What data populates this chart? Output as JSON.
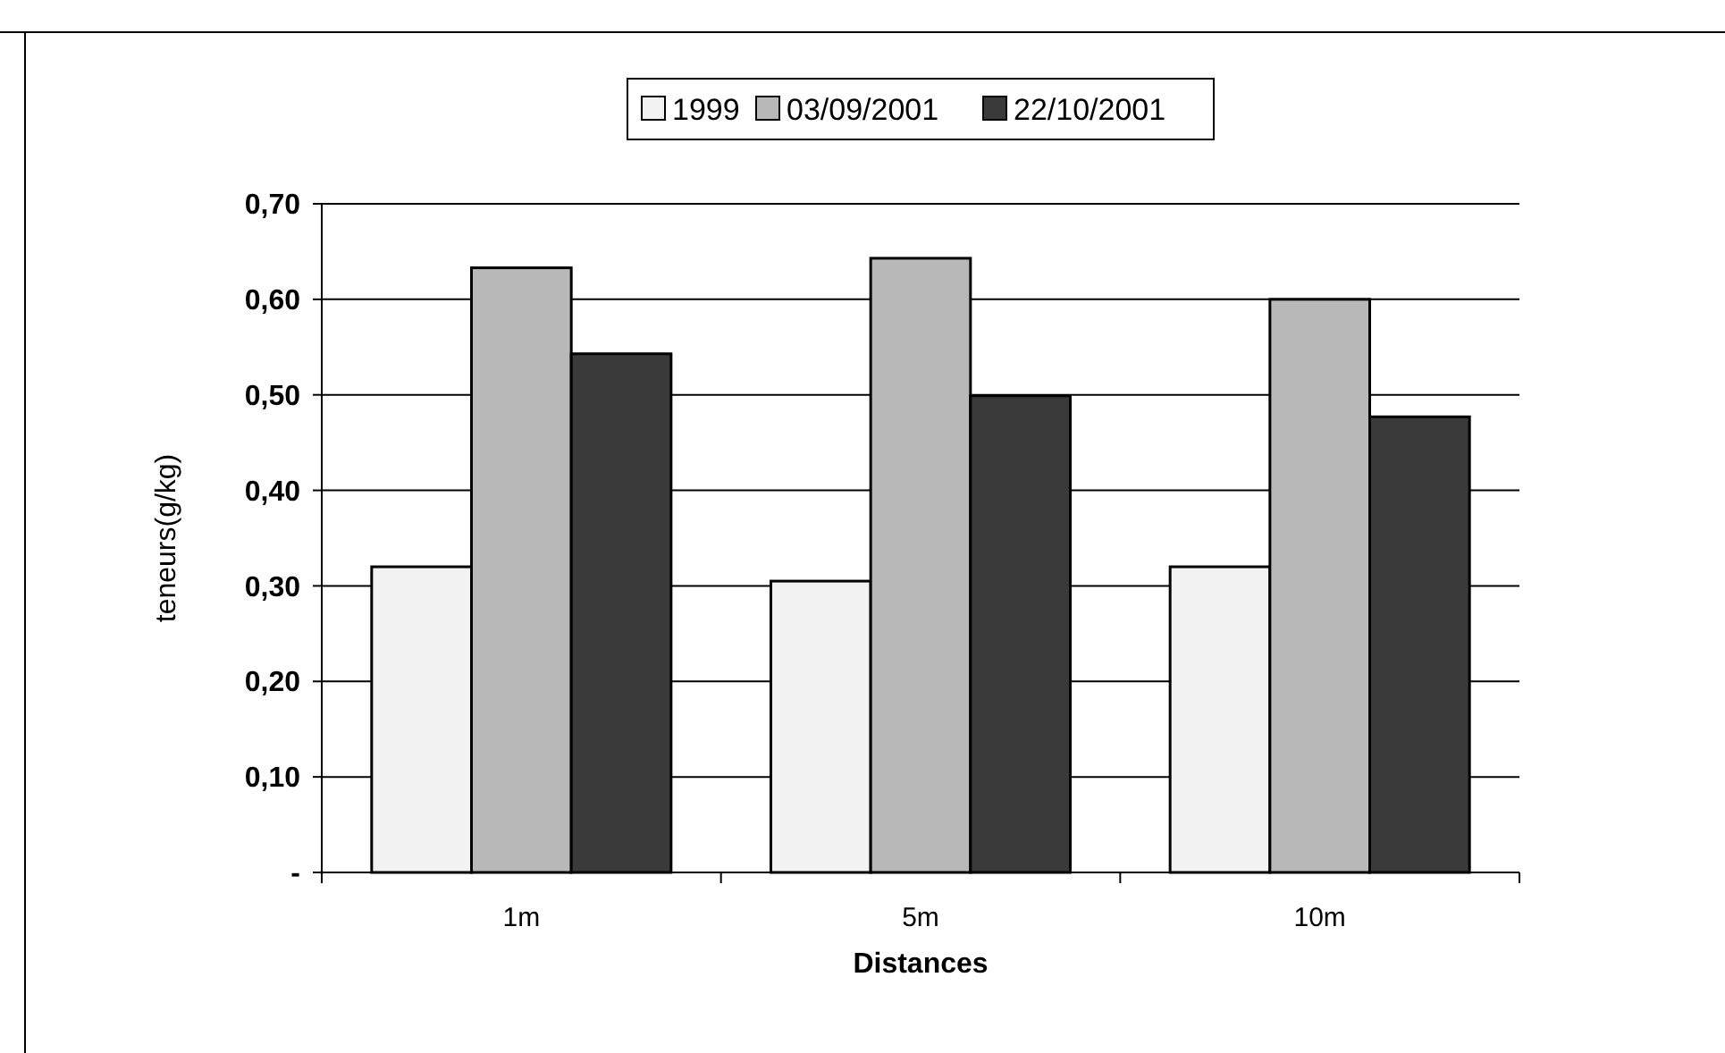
{
  "chart_data": {
    "type": "bar",
    "xlabel": "Distances",
    "ylabel": "teneurs(g/kg)",
    "categories": [
      "1m",
      "5m",
      "10m"
    ],
    "series": [
      {
        "name": "1999",
        "color": "#f2f2f2",
        "values": [
          0.32,
          0.305,
          0.32
        ]
      },
      {
        "name": "03/09/2001",
        "color": "#b8b8b8",
        "values": [
          0.633,
          0.643,
          0.6
        ]
      },
      {
        "name": "22/10/2001",
        "color": "#3a3a3a",
        "values": [
          0.543,
          0.499,
          0.477
        ]
      }
    ],
    "ylim": [
      0,
      0.7
    ],
    "yticks": [
      {
        "value": 0,
        "label": "-"
      },
      {
        "value": 0.1,
        "label": "0,10"
      },
      {
        "value": 0.2,
        "label": "0,20"
      },
      {
        "value": 0.3,
        "label": "0,30"
      },
      {
        "value": 0.4,
        "label": "0,40"
      },
      {
        "value": 0.5,
        "label": "0,50"
      },
      {
        "value": 0.6,
        "label": "0,60"
      },
      {
        "value": 0.7,
        "label": "0,70"
      }
    ],
    "grid": "y",
    "legend": "top"
  }
}
